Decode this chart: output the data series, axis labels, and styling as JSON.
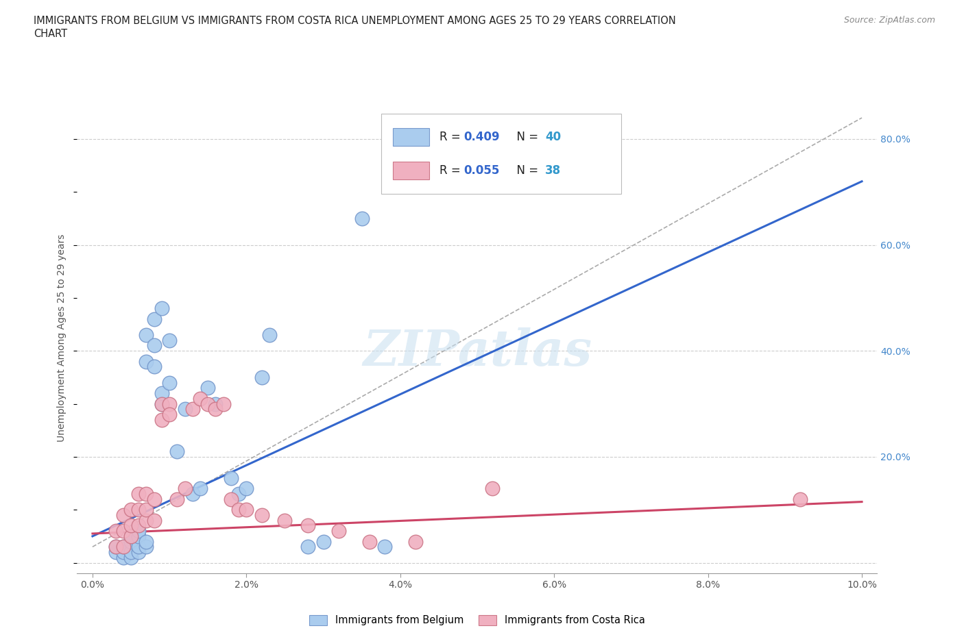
{
  "title_line1": "IMMIGRANTS FROM BELGIUM VS IMMIGRANTS FROM COSTA RICA UNEMPLOYMENT AMONG AGES 25 TO 29 YEARS CORRELATION",
  "title_line2": "CHART",
  "source_text": "Source: ZipAtlas.com",
  "ylabel": "Unemployment Among Ages 25 to 29 years",
  "background_color": "#ffffff",
  "watermark_text": "ZIPatlas",
  "belgium_color": "#aaccee",
  "belgium_edge_color": "#7799cc",
  "costa_rica_color": "#f0b0c0",
  "costa_rica_edge_color": "#cc7788",
  "belgium_R": "0.409",
  "belgium_N": "40",
  "costa_rica_R": "0.055",
  "costa_rica_N": "38",
  "legend_R_color": "#3366cc",
  "legend_N_color": "#3399cc",
  "xlim": [
    -0.002,
    0.102
  ],
  "ylim": [
    -0.02,
    0.87
  ],
  "xticks": [
    0.0,
    0.02,
    0.04,
    0.06,
    0.08,
    0.1
  ],
  "xticklabels": [
    "0.0%",
    "2.0%",
    "4.0%",
    "6.0%",
    "8.0%",
    "10.0%"
  ],
  "yticks": [
    0.0,
    0.2,
    0.4,
    0.6,
    0.8
  ],
  "yticklabels_right": [
    "",
    "20.0%",
    "40.0%",
    "60.0%",
    "80.0%"
  ],
  "grid_color": "#cccccc",
  "belgium_scatter_x": [
    0.003,
    0.003,
    0.004,
    0.004,
    0.004,
    0.005,
    0.005,
    0.005,
    0.005,
    0.006,
    0.006,
    0.006,
    0.006,
    0.007,
    0.007,
    0.007,
    0.007,
    0.008,
    0.008,
    0.008,
    0.009,
    0.009,
    0.009,
    0.01,
    0.01,
    0.011,
    0.012,
    0.013,
    0.014,
    0.015,
    0.016,
    0.018,
    0.019,
    0.02,
    0.022,
    0.023,
    0.028,
    0.03,
    0.035,
    0.038
  ],
  "belgium_scatter_y": [
    0.02,
    0.03,
    0.01,
    0.02,
    0.03,
    0.01,
    0.02,
    0.04,
    0.05,
    0.02,
    0.03,
    0.05,
    0.06,
    0.03,
    0.04,
    0.38,
    0.43,
    0.37,
    0.41,
    0.46,
    0.3,
    0.32,
    0.48,
    0.34,
    0.42,
    0.21,
    0.29,
    0.13,
    0.14,
    0.33,
    0.3,
    0.16,
    0.13,
    0.14,
    0.35,
    0.43,
    0.03,
    0.04,
    0.65,
    0.03
  ],
  "costa_rica_scatter_x": [
    0.003,
    0.003,
    0.004,
    0.004,
    0.004,
    0.005,
    0.005,
    0.005,
    0.006,
    0.006,
    0.006,
    0.007,
    0.007,
    0.007,
    0.008,
    0.008,
    0.009,
    0.009,
    0.01,
    0.01,
    0.011,
    0.012,
    0.013,
    0.014,
    0.015,
    0.016,
    0.017,
    0.018,
    0.019,
    0.02,
    0.022,
    0.025,
    0.028,
    0.032,
    0.036,
    0.042,
    0.052,
    0.092
  ],
  "costa_rica_scatter_y": [
    0.03,
    0.06,
    0.03,
    0.06,
    0.09,
    0.05,
    0.07,
    0.1,
    0.07,
    0.1,
    0.13,
    0.08,
    0.1,
    0.13,
    0.08,
    0.12,
    0.27,
    0.3,
    0.3,
    0.28,
    0.12,
    0.14,
    0.29,
    0.31,
    0.3,
    0.29,
    0.3,
    0.12,
    0.1,
    0.1,
    0.09,
    0.08,
    0.07,
    0.06,
    0.04,
    0.04,
    0.14,
    0.12
  ],
  "belgium_trend_x0": 0.0,
  "belgium_trend_x1": 0.1,
  "belgium_trend_y0": 0.05,
  "belgium_trend_y1": 0.72,
  "costa_rica_trend_x0": 0.0,
  "costa_rica_trend_x1": 0.1,
  "costa_rica_trend_y0": 0.055,
  "costa_rica_trend_y1": 0.115,
  "dash_line_x0": 0.0,
  "dash_line_x1": 0.1,
  "dash_line_y0": 0.03,
  "dash_line_y1": 0.84
}
